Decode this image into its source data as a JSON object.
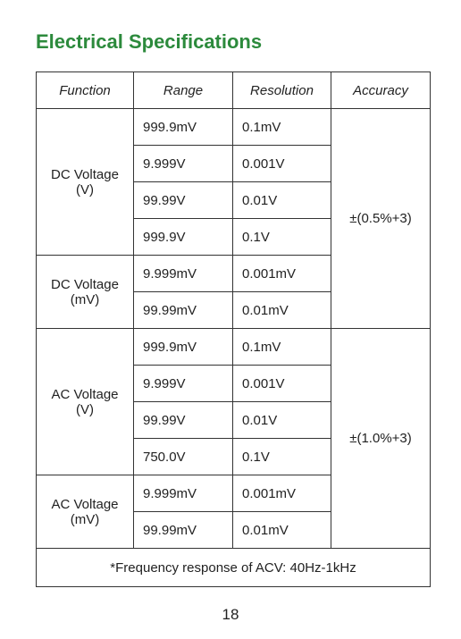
{
  "title": "Electrical Specifications",
  "table": {
    "header": [
      "Function",
      "Range",
      "Resolution",
      "Accuracy"
    ],
    "sections": [
      {
        "accuracy": "±(0.5%+3)",
        "groups": [
          {
            "function": [
              "DC Voltage",
              "(V)"
            ],
            "rows": [
              [
                "999.9mV",
                "0.1mV"
              ],
              [
                "9.999V",
                "0.001V"
              ],
              [
                "99.99V",
                "0.01V"
              ],
              [
                "999.9V",
                "0.1V"
              ]
            ]
          },
          {
            "function": [
              "DC Voltage",
              "(mV)"
            ],
            "rows": [
              [
                "9.999mV",
                "0.001mV"
              ],
              [
                "99.99mV",
                "0.01mV"
              ]
            ]
          }
        ]
      },
      {
        "accuracy": "±(1.0%+3)",
        "groups": [
          {
            "function": [
              "AC Voltage",
              "(V)"
            ],
            "rows": [
              [
                "999.9mV",
                "0.1mV"
              ],
              [
                "9.999V",
                "0.001V"
              ],
              [
                "99.99V",
                "0.01V"
              ],
              [
                "750.0V",
                "0.1V"
              ]
            ]
          },
          {
            "function": [
              "AC Voltage",
              "(mV)"
            ],
            "rows": [
              [
                "9.999mV",
                "0.001mV"
              ],
              [
                "99.99mV",
                "0.01mV"
              ]
            ]
          }
        ]
      }
    ],
    "footnote": "*Frequency response of ACV: 40Hz-1kHz"
  },
  "page_number": "18"
}
